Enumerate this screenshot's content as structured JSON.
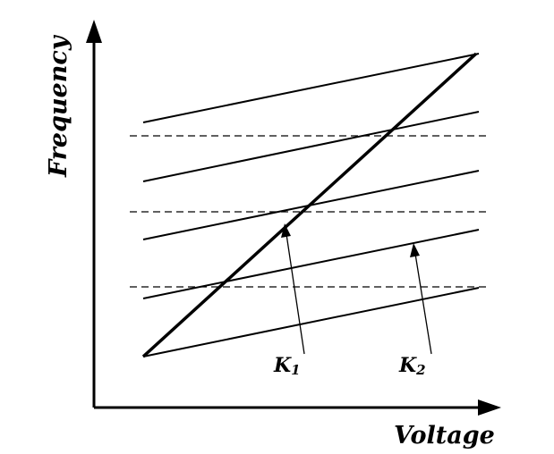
{
  "axes": {
    "x_label": "Voltage",
    "y_label": "Frequency"
  },
  "annotations": {
    "k1_main": "K",
    "k1_sub": "1",
    "k2_main": "K",
    "k2_sub": "2"
  }
}
